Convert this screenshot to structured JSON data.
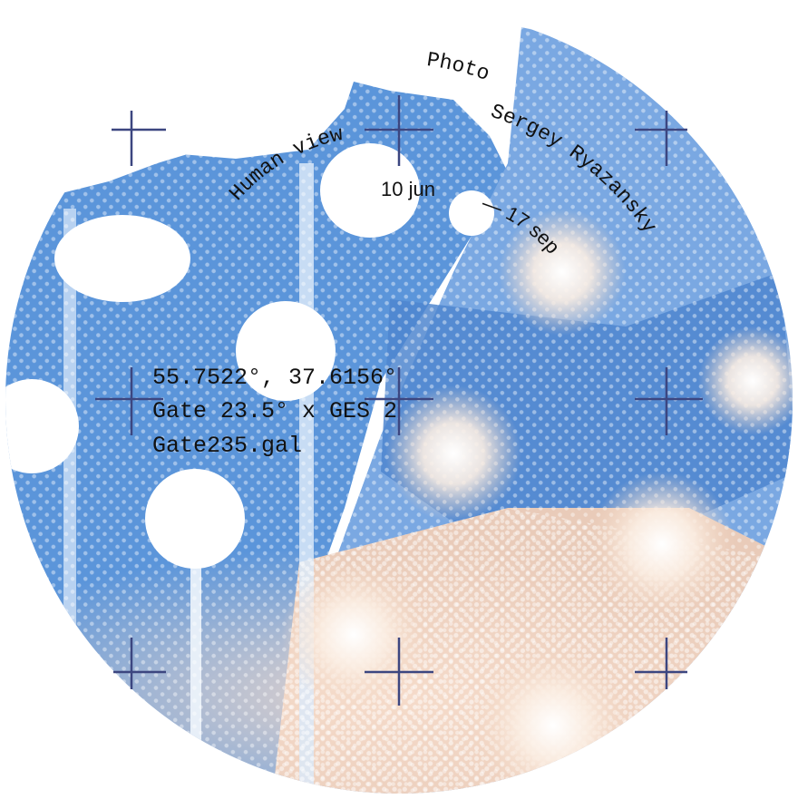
{
  "poster": {
    "label_view": "Human view",
    "label_photo": "Photo",
    "label_author": "Sergey Ryazansky",
    "label_dates": "10 jun — 17 sep",
    "info_coords": "55.7522°, 37.6156°",
    "info_gate": "Gate 23.5° x GES 2",
    "info_file": "Gate235.gal"
  },
  "colors": {
    "sky_blue": "#5b95da",
    "sky_light": "#9cc2ee",
    "warm_glow": "#f3d8c4",
    "crosshair": "#3c4680",
    "text": "#111111",
    "background": "#ffffff"
  },
  "crosshairs": {
    "icon": "crosshair-icon",
    "count": 9
  }
}
